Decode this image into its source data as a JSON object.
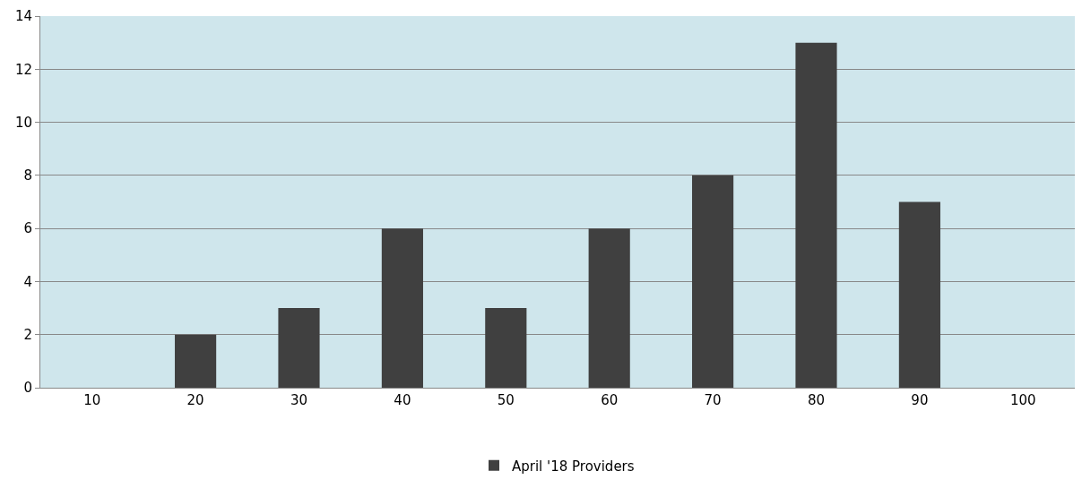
{
  "chart_data": {
    "type": "bar",
    "categories": [
      "10",
      "20",
      "30",
      "40",
      "50",
      "60",
      "70",
      "80",
      "90",
      "100"
    ],
    "series": [
      {
        "name": "April '18 Providers",
        "color": "#404040",
        "values": [
          0,
          2,
          3,
          6,
          3,
          6,
          8,
          13,
          7,
          0
        ]
      }
    ],
    "ylim": [
      0,
      14
    ],
    "yticks": [
      0,
      2,
      4,
      6,
      8,
      10,
      12,
      14
    ],
    "grid": "y",
    "legend": "bottom"
  }
}
